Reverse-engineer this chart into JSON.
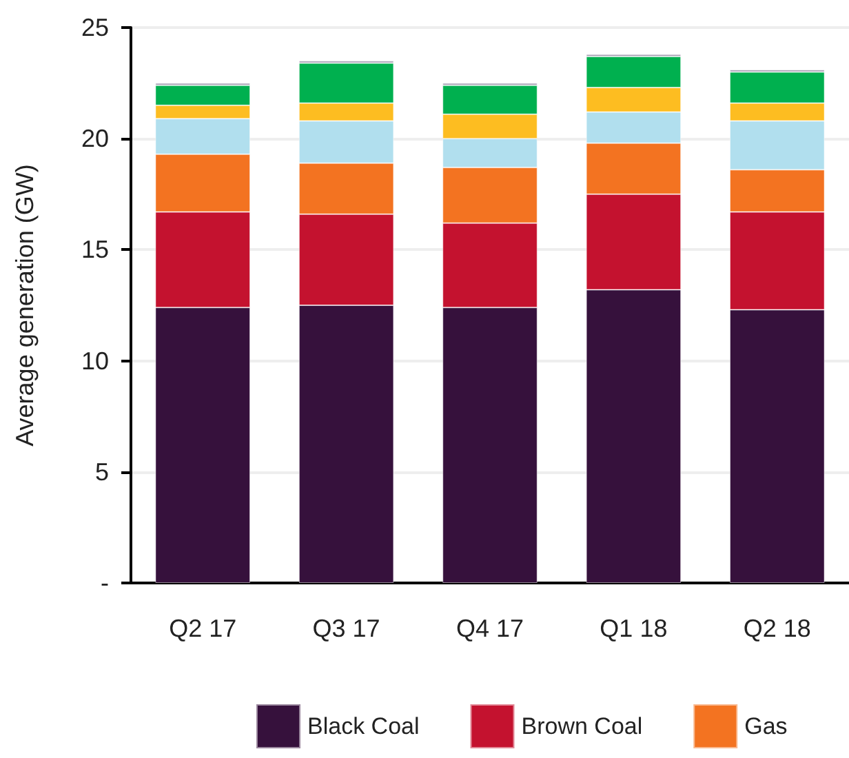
{
  "chart_data": {
    "type": "bar",
    "stacked": true,
    "ylabel": "Average generation (GW)",
    "categories": [
      "Q2 17",
      "Q3 17",
      "Q4 17",
      "Q1 18",
      "Q2 18"
    ],
    "series": [
      {
        "name": "Black Coal",
        "color": "#36113c",
        "values": [
          12.4,
          12.5,
          12.4,
          13.2,
          12.3
        ]
      },
      {
        "name": "Brown Coal",
        "color": "#c4122f",
        "values": [
          4.3,
          4.1,
          3.8,
          4.3,
          4.4
        ]
      },
      {
        "name": "Gas",
        "color": "#f37321",
        "values": [
          2.6,
          2.3,
          2.5,
          2.3,
          1.9
        ]
      },
      {
        "color": "#b1dfee",
        "values": [
          1.6,
          1.9,
          1.3,
          1.4,
          2.2
        ]
      },
      {
        "color": "#fdbd21",
        "values": [
          0.6,
          0.8,
          1.1,
          1.1,
          0.8
        ]
      },
      {
        "color": "#00b04f",
        "values": [
          0.9,
          1.8,
          1.3,
          1.4,
          1.4
        ]
      },
      {
        "color": "#a29bb0",
        "values": [
          0.1,
          0.1,
          0.1,
          0.1,
          0.1
        ]
      }
    ],
    "ylim": [
      0,
      25
    ],
    "yticks": [
      {
        "value": 0,
        "label": "-"
      },
      5,
      10,
      15,
      20,
      25
    ],
    "grid": "y",
    "legend": "bottom"
  }
}
